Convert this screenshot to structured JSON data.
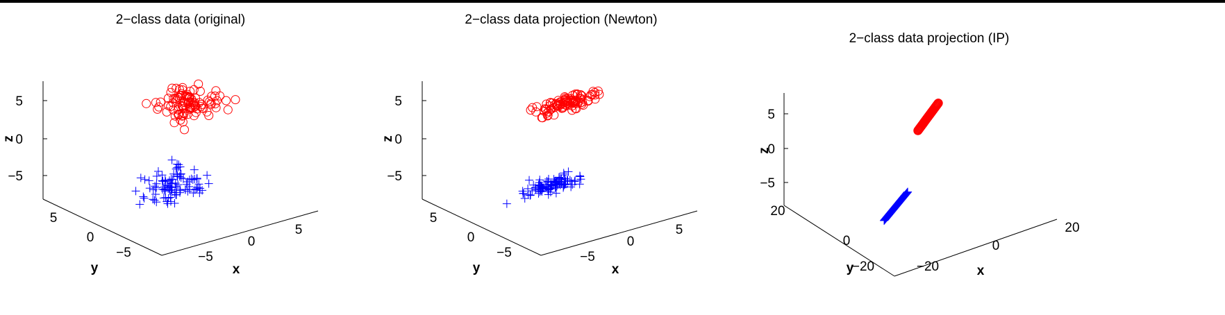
{
  "colors": {
    "class_a": "#ff0000",
    "class_b": "#0000ff",
    "axis": "#000000"
  },
  "chart_data": [
    {
      "type": "scatter",
      "title": "2−class data (original)",
      "xlabel": "x",
      "ylabel": "y",
      "zlabel": "z",
      "xticks": [
        "−5",
        "0",
        "5"
      ],
      "yticks": [
        "5",
        "0",
        "−5"
      ],
      "zticks": [
        "5",
        "0",
        "−5"
      ],
      "xlim": [
        -8,
        8
      ],
      "ylim": [
        -8,
        8
      ],
      "zlim": [
        -8,
        8
      ],
      "series": [
        {
          "marker": "o",
          "color": "red",
          "center": [
            3,
            3,
            3
          ],
          "spread": [
            1.5,
            1.0,
            1.0
          ],
          "count": 100
        },
        {
          "marker": "+",
          "color": "blue",
          "center": [
            -3,
            -3,
            -3
          ],
          "spread": [
            1.5,
            1.0,
            1.0
          ],
          "count": 100
        }
      ]
    },
    {
      "type": "scatter",
      "title": "2−class data projection (Newton)",
      "xlabel": "x",
      "ylabel": "y",
      "zlabel": "z",
      "xticks": [
        "−5",
        "0",
        "5"
      ],
      "yticks": [
        "5",
        "0",
        "−5"
      ],
      "zticks": [
        "5",
        "0",
        "−5"
      ],
      "xlim": [
        -8,
        8
      ],
      "ylim": [
        -8,
        8
      ],
      "zlim": [
        -8,
        8
      ],
      "series": [
        {
          "marker": "o",
          "color": "red",
          "center": [
            3,
            3,
            3
          ],
          "spread": [
            1.5,
            0.4,
            0.4
          ],
          "count": 100
        },
        {
          "marker": "+",
          "color": "blue",
          "center": [
            -3,
            -3,
            -3
          ],
          "spread": [
            1.5,
            0.4,
            0.4
          ],
          "count": 100
        }
      ]
    },
    {
      "type": "scatter",
      "title": "2−class data projection (IP)",
      "xlabel": "x",
      "ylabel": "y",
      "zlabel": "z",
      "xticks": [
        "−20",
        "0",
        "20"
      ],
      "yticks": [
        "20",
        "0",
        "−20"
      ],
      "zticks": [
        "5",
        "0",
        "−5"
      ],
      "xlim": [
        -25,
        25
      ],
      "ylim": [
        -25,
        25
      ],
      "zlim": [
        -8,
        8
      ],
      "series": [
        {
          "marker": "o",
          "color": "red",
          "line_from": [
            6,
            10,
            0.5
          ],
          "line_to": [
            15,
            14,
            2.2
          ],
          "count": 60
        },
        {
          "marker": "+",
          "color": "blue",
          "line_from": [
            -18,
            -10,
            -4.5
          ],
          "line_to": [
            -8,
            -6,
            -2.8
          ],
          "count": 60
        }
      ]
    }
  ]
}
